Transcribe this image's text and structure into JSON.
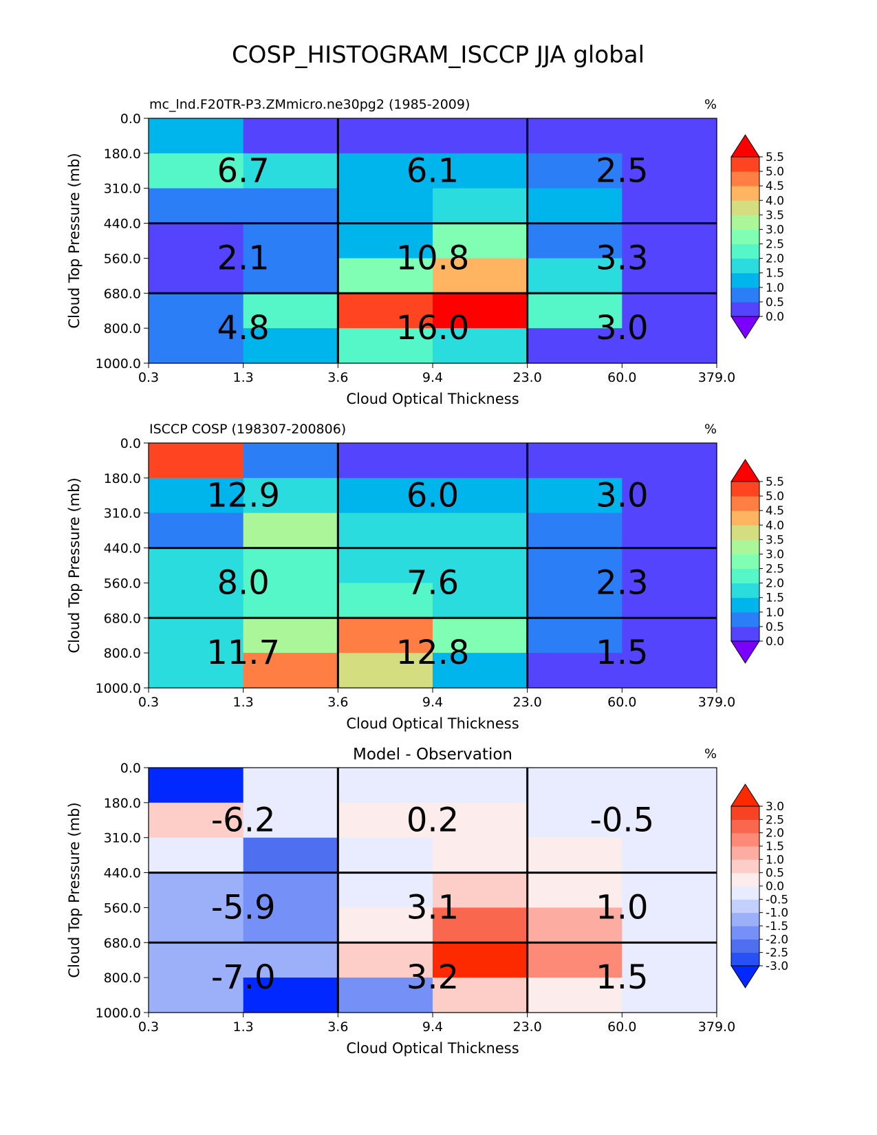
{
  "figure_title": "COSP_HISTOGRAM_ISCCP JJA global",
  "chart_data": [
    {
      "type": "heatmap",
      "title_left": "mc_lnd.F20TR-P3.ZMmicro.ne30pg2 (1985-2009)",
      "title_center": "",
      "units": "%",
      "xlabel": "Cloud Optical Thickness",
      "ylabel": "Cloud Top Pressure (mb)",
      "x_ticks": [
        "0.3",
        "1.3",
        "3.6",
        "9.4",
        "23.0",
        "60.0",
        "379.0"
      ],
      "y_ticks": [
        "0.0",
        "180.0",
        "310.0",
        "440.0",
        "560.0",
        "680.0",
        "800.0",
        "1000.0"
      ],
      "colorbar_ticks": [
        "0.0",
        "0.5",
        "1.0",
        "1.5",
        "2.0",
        "2.5",
        "3.0",
        "3.5",
        "4.0",
        "4.5",
        "5.0",
        "5.5"
      ],
      "colormap": "sequential",
      "levels": [
        0.0,
        0.5,
        1.0,
        1.5,
        2.0,
        2.5,
        3.0,
        3.5,
        4.0,
        4.5,
        5.0,
        5.5
      ],
      "values": [
        [
          1.3,
          0.2,
          0.2,
          0.2,
          0.2,
          0.2
        ],
        [
          2.3,
          1.8,
          1.3,
          1.3,
          0.8,
          0.2
        ],
        [
          0.8,
          0.8,
          1.3,
          1.8,
          1.3,
          0.2
        ],
        [
          0.2,
          0.8,
          1.3,
          2.8,
          0.8,
          0.2
        ],
        [
          0.2,
          0.8,
          2.8,
          4.3,
          1.8,
          0.2
        ],
        [
          0.8,
          2.3,
          5.3,
          6.0,
          2.3,
          0.2
        ],
        [
          0.8,
          1.3,
          2.3,
          1.8,
          0.2,
          0.2
        ]
      ],
      "block_labels": [
        [
          "6.7",
          "6.1",
          "2.5"
        ],
        [
          "2.1",
          "10.8",
          "3.3"
        ],
        [
          "4.8",
          "16.0",
          "3.0"
        ]
      ]
    },
    {
      "type": "heatmap",
      "title_left": "ISCCP COSP (198307-200806)",
      "title_center": "",
      "units": "%",
      "xlabel": "Cloud Optical Thickness",
      "ylabel": "Cloud Top Pressure (mb)",
      "x_ticks": [
        "0.3",
        "1.3",
        "3.6",
        "9.4",
        "23.0",
        "60.0",
        "379.0"
      ],
      "y_ticks": [
        "0.0",
        "180.0",
        "310.0",
        "440.0",
        "560.0",
        "680.0",
        "800.0",
        "1000.0"
      ],
      "colorbar_ticks": [
        "0.0",
        "0.5",
        "1.0",
        "1.5",
        "2.0",
        "2.5",
        "3.0",
        "3.5",
        "4.0",
        "4.5",
        "5.0",
        "5.5"
      ],
      "colormap": "sequential",
      "levels": [
        0.0,
        0.5,
        1.0,
        1.5,
        2.0,
        2.5,
        3.0,
        3.5,
        4.0,
        4.5,
        5.0,
        5.5
      ],
      "values": [
        [
          5.3,
          0.8,
          0.2,
          0.2,
          0.2,
          0.2
        ],
        [
          1.3,
          1.8,
          1.3,
          1.3,
          1.3,
          0.2
        ],
        [
          0.8,
          3.3,
          1.8,
          1.8,
          0.8,
          0.2
        ],
        [
          1.8,
          2.3,
          1.8,
          1.8,
          0.8,
          0.2
        ],
        [
          1.8,
          2.3,
          2.3,
          1.8,
          0.8,
          0.2
        ],
        [
          1.8,
          3.3,
          4.8,
          2.8,
          0.8,
          0.2
        ],
        [
          1.8,
          4.8,
          3.8,
          1.3,
          0.2,
          0.2
        ]
      ],
      "block_labels": [
        [
          "12.9",
          "6.0",
          "3.0"
        ],
        [
          "8.0",
          "7.6",
          "2.3"
        ],
        [
          "11.7",
          "12.8",
          "1.5"
        ]
      ]
    },
    {
      "type": "heatmap",
      "title_left": "",
      "title_center": "Model - Observation",
      "units": "%",
      "xlabel": "Cloud Optical Thickness",
      "ylabel": "Cloud Top Pressure (mb)",
      "x_ticks": [
        "0.3",
        "1.3",
        "3.6",
        "9.4",
        "23.0",
        "60.0",
        "379.0"
      ],
      "y_ticks": [
        "0.0",
        "180.0",
        "310.0",
        "440.0",
        "560.0",
        "680.0",
        "800.0",
        "1000.0"
      ],
      "colorbar_ticks": [
        "-3.0",
        "-2.5",
        "-2.0",
        "-1.5",
        "-1.0",
        "-0.5",
        "0.0",
        "0.5",
        "1.0",
        "1.5",
        "2.0",
        "2.5",
        "3.0"
      ],
      "colormap": "diverging",
      "levels": [
        -3.0,
        -2.5,
        -2.0,
        -1.5,
        -1.0,
        -0.5,
        0.0,
        0.5,
        1.0,
        1.5,
        2.0,
        2.5,
        3.0
      ],
      "values": [
        [
          -3.5,
          -0.2,
          -0.2,
          -0.2,
          -0.2,
          -0.2
        ],
        [
          0.7,
          -0.2,
          0.2,
          0.2,
          -0.2,
          -0.2
        ],
        [
          -0.2,
          -2.2,
          -0.2,
          0.2,
          0.2,
          -0.2
        ],
        [
          -1.2,
          -1.7,
          -0.2,
          0.7,
          0.2,
          -0.2
        ],
        [
          -1.2,
          -1.7,
          0.2,
          2.2,
          1.2,
          -0.2
        ],
        [
          -1.2,
          -1.2,
          0.7,
          3.2,
          1.7,
          -0.2
        ],
        [
          -1.2,
          -3.5,
          -1.7,
          0.7,
          0.2,
          -0.2
        ]
      ],
      "block_labels": [
        [
          "-6.2",
          "0.2",
          "-0.5"
        ],
        [
          "-5.9",
          "3.1",
          "1.0"
        ],
        [
          "-7.0",
          "3.2",
          "1.5"
        ]
      ]
    }
  ]
}
